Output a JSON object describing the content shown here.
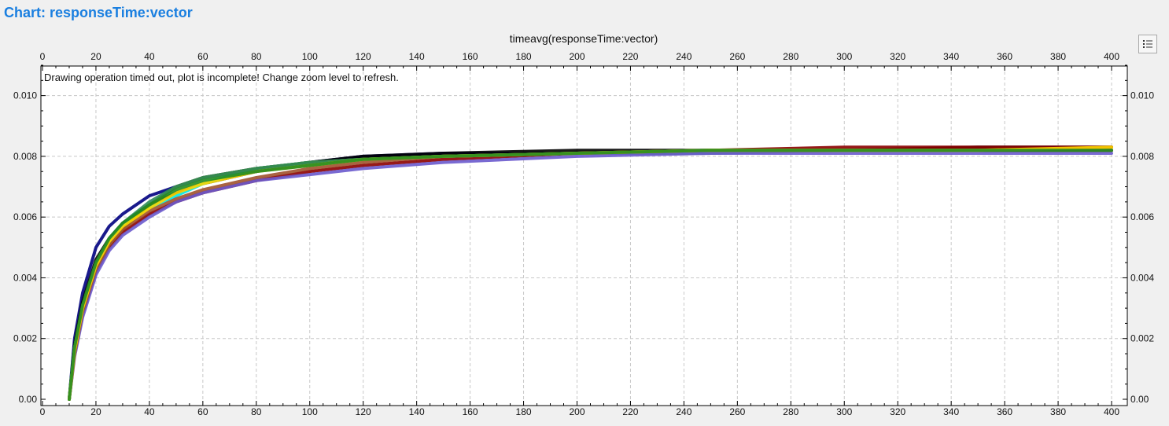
{
  "page": {
    "title": "Chart: responseTime:vector",
    "toolbar": {
      "icon": "list-settings-icon"
    }
  },
  "colors": {
    "title": "#1a7fe0",
    "background": "#f0f0f0",
    "plot_background": "#ffffff",
    "grid": "#c8c8c8"
  },
  "chart_data": {
    "type": "line",
    "title": "timeavg(responseTime:vector)",
    "notice": "Drawing operation timed out, plot is incomplete! Change zoom level to refresh.",
    "xlabel": "",
    "ylabel": "",
    "xlim": [
      0,
      400
    ],
    "ylim": [
      0,
      0.011
    ],
    "x_ticks": [
      0,
      20,
      40,
      60,
      80,
      100,
      120,
      140,
      160,
      180,
      200,
      220,
      240,
      260,
      280,
      300,
      320,
      340,
      360,
      380,
      400
    ],
    "x_tick_labels": [
      "0",
      "20",
      "40",
      "60",
      "80",
      "100",
      "120",
      "140",
      "160",
      "180",
      "200",
      "220",
      "240",
      "260",
      "280",
      "300",
      "320",
      "340",
      "360",
      "380",
      "400"
    ],
    "y_ticks": [
      0,
      0.002,
      0.004,
      0.006,
      0.008,
      0.01
    ],
    "y_tick_labels": [
      "0.00",
      "0.002",
      "0.004",
      "0.006",
      "0.008",
      "0.010"
    ],
    "grid": true,
    "legend": "none",
    "axes": {
      "top": true,
      "bottom": true,
      "left": true,
      "right": true
    },
    "series": [
      {
        "color": "#000080",
        "values_x": [
          10,
          12,
          15,
          20,
          25,
          30,
          40,
          50,
          60,
          80,
          100,
          120,
          150,
          200,
          250,
          300,
          350,
          400
        ],
        "values_y": [
          0.0,
          0.002,
          0.0035,
          0.005,
          0.0057,
          0.0061,
          0.0067,
          0.007,
          0.0073,
          0.0076,
          0.0078,
          0.008,
          0.0081,
          0.0081,
          0.0082,
          0.0082,
          0.0082,
          0.0082
        ]
      },
      {
        "color": "#000000",
        "values_x": [
          10,
          12,
          15,
          20,
          25,
          30,
          40,
          50,
          60,
          80,
          100,
          120,
          150,
          200,
          250,
          300,
          350,
          400
        ],
        "values_y": [
          0.0,
          0.0018,
          0.0032,
          0.0046,
          0.0053,
          0.0058,
          0.0064,
          0.0068,
          0.0071,
          0.0075,
          0.0078,
          0.008,
          0.0081,
          0.0082,
          0.0082,
          0.0082,
          0.0083,
          0.0083
        ]
      },
      {
        "color": "#8b0000",
        "values_x": [
          10,
          12,
          15,
          20,
          25,
          30,
          40,
          50,
          60,
          80,
          100,
          120,
          150,
          200,
          250,
          300,
          350,
          400
        ],
        "values_y": [
          0.0,
          0.0015,
          0.0028,
          0.0042,
          0.005,
          0.0055,
          0.0061,
          0.0065,
          0.0068,
          0.0072,
          0.0075,
          0.0077,
          0.0079,
          0.0081,
          0.0082,
          0.0083,
          0.0083,
          0.0083
        ]
      },
      {
        "color": "#00e5e5",
        "values_x": [
          10,
          12,
          15,
          20,
          25,
          30,
          40,
          50,
          60,
          80,
          100,
          120,
          150,
          200,
          250,
          300,
          350,
          400
        ],
        "values_y": [
          0.0,
          0.0017,
          0.003,
          0.0044,
          0.0052,
          0.0057,
          0.0063,
          0.0067,
          0.0071,
          0.0076,
          0.0078,
          0.0079,
          0.008,
          0.0081,
          0.0082,
          0.0082,
          0.0082,
          0.0082
        ]
      },
      {
        "color": "#808000",
        "values_x": [
          10,
          12,
          15,
          20,
          25,
          30,
          40,
          50,
          60,
          80,
          100,
          120,
          150,
          200,
          250,
          300,
          350,
          400
        ],
        "values_y": [
          0.0,
          0.0016,
          0.0029,
          0.0043,
          0.0051,
          0.0056,
          0.0064,
          0.007,
          0.0073,
          0.0076,
          0.0078,
          0.0079,
          0.008,
          0.0081,
          0.0082,
          0.0082,
          0.0082,
          0.0082
        ]
      },
      {
        "color": "#2e8b57",
        "values_x": [
          10,
          12,
          15,
          20,
          25,
          30,
          40,
          50,
          60,
          80,
          100,
          120,
          150,
          200,
          250,
          300,
          350,
          400
        ],
        "values_y": [
          0.0,
          0.0017,
          0.0031,
          0.0045,
          0.0053,
          0.0058,
          0.0065,
          0.007,
          0.0073,
          0.0076,
          0.0078,
          0.0079,
          0.008,
          0.0081,
          0.0081,
          0.0082,
          0.0082,
          0.0082
        ]
      },
      {
        "color": "#6a5acd",
        "values_x": [
          10,
          12,
          15,
          20,
          25,
          30,
          40,
          50,
          60,
          80,
          100,
          120,
          150,
          200,
          250,
          300,
          350,
          400
        ],
        "values_y": [
          0.0,
          0.0014,
          0.0027,
          0.0041,
          0.0049,
          0.0054,
          0.006,
          0.0065,
          0.0068,
          0.0072,
          0.0074,
          0.0076,
          0.0078,
          0.008,
          0.0081,
          0.0081,
          0.0081,
          0.0081
        ]
      },
      {
        "color": "#a0522d",
        "values_x": [
          10,
          12,
          15,
          20,
          25,
          30,
          40,
          50,
          60,
          80,
          100,
          120,
          150,
          200,
          250,
          300,
          350,
          400
        ],
        "values_y": [
          0.0,
          0.0015,
          0.0029,
          0.0043,
          0.0051,
          0.0056,
          0.0062,
          0.0066,
          0.0069,
          0.0073,
          0.0076,
          0.0078,
          0.008,
          0.0081,
          0.0082,
          0.0082,
          0.0082,
          0.0082
        ]
      },
      {
        "color": "#ffd700",
        "values_x": [
          10,
          12,
          15,
          20,
          25,
          30,
          40,
          50,
          60,
          80,
          100,
          120,
          150,
          200,
          250,
          300,
          350,
          400
        ],
        "values_y": [
          0.0,
          0.0016,
          0.003,
          0.0044,
          0.0052,
          0.0057,
          0.0063,
          0.0068,
          0.0071,
          0.0075,
          0.0077,
          0.0079,
          0.008,
          0.0081,
          0.0082,
          0.0082,
          0.0082,
          0.0083
        ]
      },
      {
        "color": "#228b22",
        "values_x": [
          10,
          12,
          15,
          20,
          25,
          30,
          40,
          50,
          60,
          80,
          100,
          120,
          150,
          200,
          250,
          300,
          350,
          400
        ],
        "values_y": [
          0.0,
          0.0017,
          0.0031,
          0.0045,
          0.0053,
          0.0058,
          0.0064,
          0.0069,
          0.0072,
          0.0075,
          0.0077,
          0.0079,
          0.008,
          0.0081,
          0.0082,
          0.0082,
          0.0082,
          0.0082
        ]
      }
    ]
  }
}
